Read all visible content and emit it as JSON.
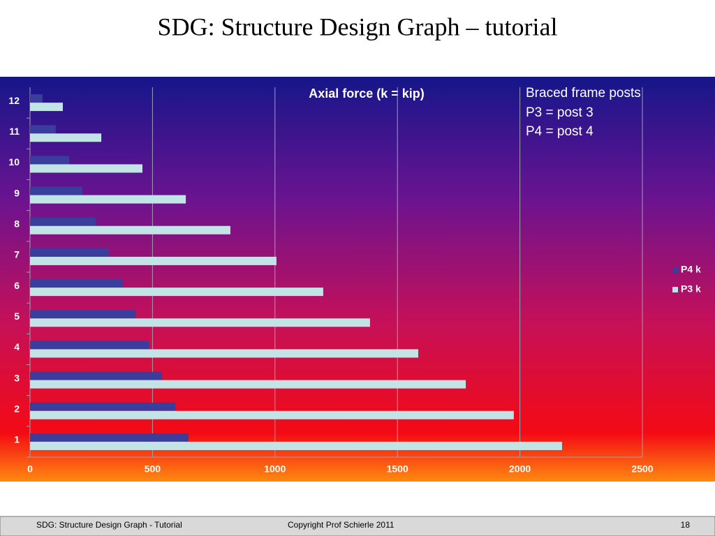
{
  "slide_title": "SDG: Structure Design Graph – tutorial",
  "chart_data": {
    "type": "bar",
    "orientation": "horizontal",
    "title": "Axial force (k = kip)",
    "annotations": [
      "Braced frame posts",
      "P3 = post 3",
      "P4 = post 4"
    ],
    "categories": [
      "1",
      "2",
      "3",
      "4",
      "5",
      "6",
      "7",
      "8",
      "9",
      "10",
      "11",
      "12"
    ],
    "series": [
      {
        "name": "P4 k",
        "color": "#3b3d9c",
        "values": [
          647,
          593,
          539,
          485,
          431,
          379,
          322,
          268,
          214,
          160,
          105,
          51
        ]
      },
      {
        "name": "P3 k",
        "color": "#c3e4e6",
        "values": [
          2172,
          1975,
          1779,
          1585,
          1388,
          1197,
          1006,
          818,
          636,
          459,
          291,
          134
        ]
      }
    ],
    "xlim": [
      0,
      2500
    ],
    "xticks": [
      0,
      500,
      1000,
      1500,
      2000,
      2500
    ],
    "grid": true,
    "legend": "right"
  },
  "footer": {
    "left": "SDG: Structure Design Graph - Tutorial",
    "center": "Copyright Prof Schierle 2011",
    "page": "18"
  }
}
